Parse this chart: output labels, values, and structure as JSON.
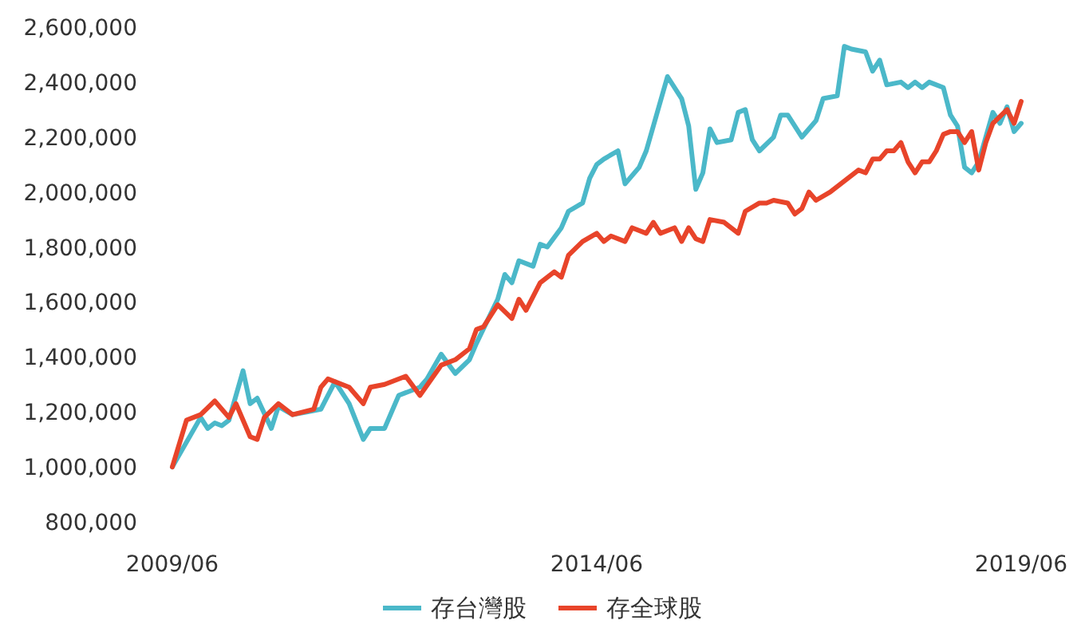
{
  "chart_data": {
    "type": "line",
    "xlim": [
      "2009-06",
      "2019-06"
    ],
    "ylim": [
      800000,
      2600000
    ],
    "xticks": [
      {
        "value": "2009-06",
        "label": "2009/06"
      },
      {
        "value": "2014-06",
        "label": "2014/06"
      },
      {
        "value": "2019-06",
        "label": "2019/06"
      }
    ],
    "yticks": [
      {
        "value": 800000,
        "label": "800,000"
      },
      {
        "value": 1000000,
        "label": "1,000,000"
      },
      {
        "value": 1200000,
        "label": "1,200,000"
      },
      {
        "value": 1400000,
        "label": "1,400,000"
      },
      {
        "value": 1600000,
        "label": "1,600,000"
      },
      {
        "value": 1800000,
        "label": "1,800,000"
      },
      {
        "value": 2000000,
        "label": "2,000,000"
      },
      {
        "value": 2200000,
        "label": "2,200,000"
      },
      {
        "value": 2400000,
        "label": "2,400,000"
      },
      {
        "value": 2600000,
        "label": "2,600,000"
      }
    ],
    "grid": false,
    "legend": "bottom",
    "marker": "none",
    "line_style": "solid",
    "series": [
      {
        "name": "存台灣股",
        "color": "#4bb8c9",
        "x": [
          "2009-06",
          "2009-08",
          "2009-10",
          "2009-11",
          "2009-12",
          "2010-01",
          "2010-02",
          "2010-04",
          "2010-05",
          "2010-06",
          "2010-08",
          "2010-09",
          "2010-11",
          "2011-01",
          "2011-03",
          "2011-05",
          "2011-07",
          "2011-09",
          "2011-10",
          "2011-12",
          "2012-02",
          "2012-05",
          "2012-06",
          "2012-08",
          "2012-10",
          "2012-12",
          "2013-01",
          "2013-04",
          "2013-05",
          "2013-06",
          "2013-07",
          "2013-09",
          "2013-10",
          "2013-11",
          "2014-01",
          "2014-02",
          "2014-04",
          "2014-05",
          "2014-06",
          "2014-07",
          "2014-09",
          "2014-10",
          "2014-12",
          "2015-01",
          "2015-02",
          "2015-04",
          "2015-06",
          "2015-07",
          "2015-08",
          "2015-09",
          "2015-10",
          "2015-11",
          "2016-01",
          "2016-02",
          "2016-03",
          "2016-04",
          "2016-05",
          "2016-07",
          "2016-08",
          "2016-09",
          "2016-11",
          "2017-01",
          "2017-02",
          "2017-04",
          "2017-05",
          "2017-06",
          "2017-08",
          "2017-09",
          "2017-10",
          "2017-11",
          "2018-01",
          "2018-02",
          "2018-03",
          "2018-04",
          "2018-05",
          "2018-07",
          "2018-08",
          "2018-09",
          "2018-10",
          "2018-11",
          "2018-12",
          "2019-02",
          "2019-03",
          "2019-04",
          "2019-05",
          "2019-06"
        ],
        "values": [
          1000000,
          1090000,
          1180000,
          1140000,
          1160000,
          1150000,
          1170000,
          1350000,
          1230000,
          1250000,
          1140000,
          1220000,
          1190000,
          1200000,
          1210000,
          1310000,
          1230000,
          1100000,
          1140000,
          1140000,
          1260000,
          1290000,
          1320000,
          1410000,
          1340000,
          1390000,
          1450000,
          1610000,
          1700000,
          1670000,
          1750000,
          1730000,
          1810000,
          1800000,
          1870000,
          1930000,
          1960000,
          2050000,
          2100000,
          2120000,
          2150000,
          2030000,
          2090000,
          2150000,
          2240000,
          2420000,
          2340000,
          2240000,
          2010000,
          2070000,
          2230000,
          2180000,
          2190000,
          2290000,
          2300000,
          2190000,
          2150000,
          2200000,
          2280000,
          2280000,
          2200000,
          2260000,
          2340000,
          2350000,
          2530000,
          2520000,
          2510000,
          2440000,
          2480000,
          2390000,
          2400000,
          2380000,
          2400000,
          2380000,
          2400000,
          2380000,
          2280000,
          2240000,
          2090000,
          2070000,
          2110000,
          2290000,
          2250000,
          2310000,
          2220000,
          2250000
        ]
      },
      {
        "name": "存全球股",
        "color": "#e8442a",
        "x": [
          "2009-06",
          "2009-08",
          "2009-10",
          "2009-12",
          "2010-02",
          "2010-03",
          "2010-05",
          "2010-06",
          "2010-07",
          "2010-09",
          "2010-11",
          "2011-02",
          "2011-03",
          "2011-04",
          "2011-07",
          "2011-09",
          "2011-10",
          "2011-12",
          "2012-03",
          "2012-05",
          "2012-08",
          "2012-10",
          "2012-12",
          "2013-01",
          "2013-02",
          "2013-04",
          "2013-06",
          "2013-07",
          "2013-08",
          "2013-10",
          "2013-12",
          "2014-01",
          "2014-02",
          "2014-04",
          "2014-06",
          "2014-07",
          "2014-08",
          "2014-10",
          "2014-11",
          "2015-01",
          "2015-02",
          "2015-03",
          "2015-05",
          "2015-06",
          "2015-07",
          "2015-08",
          "2015-09",
          "2015-10",
          "2015-12",
          "2016-02",
          "2016-03",
          "2016-05",
          "2016-06",
          "2016-07",
          "2016-09",
          "2016-10",
          "2016-11",
          "2016-12",
          "2017-01",
          "2017-03",
          "2017-05",
          "2017-07",
          "2017-08",
          "2017-09",
          "2017-10",
          "2017-11",
          "2017-12",
          "2018-01",
          "2018-02",
          "2018-03",
          "2018-04",
          "2018-05",
          "2018-06",
          "2018-07",
          "2018-08",
          "2018-09",
          "2018-10",
          "2018-11",
          "2018-12",
          "2019-01",
          "2019-02",
          "2019-04",
          "2019-05",
          "2019-06"
        ],
        "values": [
          1000000,
          1170000,
          1190000,
          1240000,
          1180000,
          1230000,
          1110000,
          1100000,
          1180000,
          1230000,
          1190000,
          1210000,
          1290000,
          1320000,
          1290000,
          1230000,
          1290000,
          1300000,
          1330000,
          1260000,
          1370000,
          1390000,
          1430000,
          1500000,
          1510000,
          1590000,
          1540000,
          1610000,
          1570000,
          1670000,
          1710000,
          1690000,
          1770000,
          1820000,
          1850000,
          1820000,
          1840000,
          1820000,
          1870000,
          1850000,
          1890000,
          1850000,
          1870000,
          1820000,
          1870000,
          1830000,
          1820000,
          1900000,
          1890000,
          1850000,
          1930000,
          1960000,
          1960000,
          1970000,
          1960000,
          1920000,
          1940000,
          2000000,
          1970000,
          2000000,
          2040000,
          2080000,
          2070000,
          2120000,
          2120000,
          2150000,
          2150000,
          2180000,
          2110000,
          2070000,
          2110000,
          2110000,
          2150000,
          2210000,
          2220000,
          2220000,
          2180000,
          2220000,
          2080000,
          2180000,
          2250000,
          2300000,
          2250000,
          2330000
        ]
      }
    ]
  }
}
